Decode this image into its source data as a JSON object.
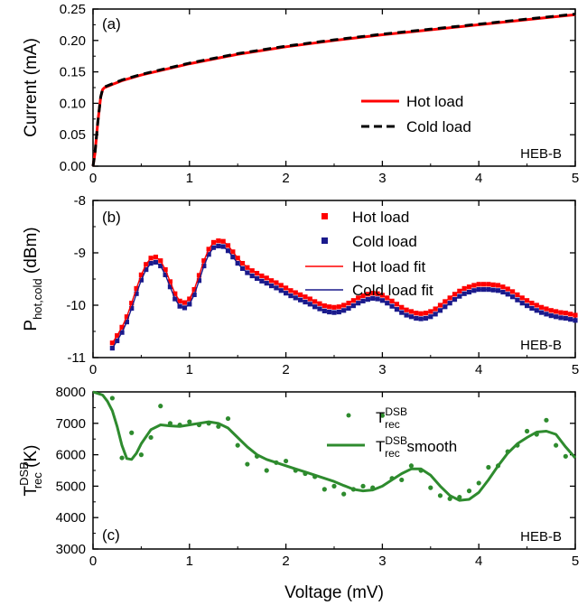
{
  "chart_data": [
    {
      "type": "line",
      "panel_label": "(a)",
      "annotation": "HEB-B",
      "ylabel": "Current (mA)",
      "xlim": [
        0,
        5
      ],
      "ylim": [
        0,
        0.25
      ],
      "x_ticks": [
        "0",
        "1",
        "2",
        "3",
        "4",
        "5"
      ],
      "y_ticks": [
        "0.00",
        "0.05",
        "0.10",
        "0.15",
        "0.20",
        "0.25"
      ],
      "legend_position": "right",
      "series": [
        {
          "name": "Hot load",
          "color": "#ff0000",
          "style": "solid",
          "x": [
            0,
            0.02,
            0.05,
            0.08,
            0.1,
            0.12,
            0.2,
            0.3,
            0.5,
            0.75,
            1.0,
            1.5,
            2.0,
            2.5,
            3.0,
            3.5,
            4.0,
            4.5,
            5.0
          ],
          "y": [
            0,
            0.02,
            0.07,
            0.11,
            0.122,
            0.125,
            0.13,
            0.136,
            0.145,
            0.154,
            0.163,
            0.178,
            0.19,
            0.2,
            0.209,
            0.217,
            0.225,
            0.233,
            0.241
          ]
        },
        {
          "name": "Cold load",
          "color": "#000000",
          "style": "dashed",
          "x": [
            0,
            0.02,
            0.05,
            0.08,
            0.1,
            0.12,
            0.2,
            0.3,
            0.5,
            0.75,
            1.0,
            1.5,
            2.0,
            2.5,
            3.0,
            3.5,
            4.0,
            4.5,
            5.0
          ],
          "y": [
            0,
            0.02,
            0.07,
            0.11,
            0.123,
            0.126,
            0.131,
            0.137,
            0.146,
            0.155,
            0.164,
            0.179,
            0.191,
            0.201,
            0.21,
            0.218,
            0.226,
            0.234,
            0.242
          ]
        }
      ]
    },
    {
      "type": "line",
      "panel_label": "(b)",
      "annotation": "HEB-B",
      "ylabel_main": "P",
      "ylabel_sub": "hot,cold",
      "ylabel_unit": " (dBm)",
      "xlim": [
        0,
        5
      ],
      "ylim": [
        -11,
        -8
      ],
      "x_ticks": [
        "0",
        "1",
        "2",
        "3",
        "4",
        "5"
      ],
      "y_ticks": [
        "-11",
        "-10",
        "-9",
        "-8"
      ],
      "legend_position": "top-right",
      "series": [
        {
          "name": "Hot load",
          "color": "#ff0000",
          "style": "markers",
          "x": [
            0.2,
            0.25,
            0.3,
            0.35,
            0.4,
            0.45,
            0.5,
            0.55,
            0.6,
            0.65,
            0.7,
            0.75,
            0.8,
            0.85,
            0.9,
            0.95,
            1.0,
            1.05,
            1.1,
            1.15,
            1.2,
            1.25,
            1.3,
            1.35,
            1.4,
            1.45,
            1.5,
            1.55,
            1.6,
            1.65,
            1.7,
            1.75,
            1.8,
            1.85,
            1.9,
            1.95,
            2.0,
            2.05,
            2.1,
            2.15,
            2.2,
            2.25,
            2.3,
            2.35,
            2.4,
            2.45,
            2.5,
            2.55,
            2.6,
            2.65,
            2.7,
            2.75,
            2.8,
            2.85,
            2.9,
            2.95,
            3.0,
            3.05,
            3.1,
            3.15,
            3.2,
            3.25,
            3.3,
            3.35,
            3.4,
            3.45,
            3.5,
            3.55,
            3.6,
            3.65,
            3.7,
            3.75,
            3.8,
            3.85,
            3.9,
            3.95,
            4.0,
            4.05,
            4.1,
            4.15,
            4.2,
            4.25,
            4.3,
            4.35,
            4.4,
            4.45,
            4.5,
            4.55,
            4.6,
            4.65,
            4.7,
            4.75,
            4.8,
            4.85,
            4.9,
            4.95,
            5.0
          ],
          "y": [
            -10.72,
            -10.58,
            -10.42,
            -10.22,
            -9.96,
            -9.68,
            -9.42,
            -9.22,
            -9.1,
            -9.08,
            -9.15,
            -9.32,
            -9.55,
            -9.78,
            -9.92,
            -9.95,
            -9.88,
            -9.7,
            -9.43,
            -9.15,
            -8.93,
            -8.8,
            -8.77,
            -8.78,
            -8.86,
            -8.98,
            -9.1,
            -9.2,
            -9.28,
            -9.34,
            -9.39,
            -9.44,
            -9.48,
            -9.53,
            -9.57,
            -9.62,
            -9.67,
            -9.72,
            -9.76,
            -9.8,
            -9.84,
            -9.88,
            -9.93,
            -9.97,
            -10.01,
            -10.03,
            -10.04,
            -10.03,
            -10.0,
            -9.96,
            -9.91,
            -9.86,
            -9.82,
            -9.79,
            -9.77,
            -9.78,
            -9.81,
            -9.86,
            -9.92,
            -9.98,
            -10.04,
            -10.09,
            -10.12,
            -10.15,
            -10.16,
            -10.15,
            -10.12,
            -10.07,
            -10.0,
            -9.93,
            -9.86,
            -9.79,
            -9.73,
            -9.68,
            -9.65,
            -9.62,
            -9.6,
            -9.6,
            -9.6,
            -9.61,
            -9.62,
            -9.65,
            -9.69,
            -9.74,
            -9.8,
            -9.86,
            -9.91,
            -9.96,
            -10.0,
            -10.04,
            -10.07,
            -10.1,
            -10.12,
            -10.14,
            -10.15,
            -10.17,
            -10.19
          ]
        },
        {
          "name": "Cold load",
          "color": "#1a1a8c",
          "style": "markers",
          "x": [
            0.2,
            0.25,
            0.3,
            0.35,
            0.4,
            0.45,
            0.5,
            0.55,
            0.6,
            0.65,
            0.7,
            0.75,
            0.8,
            0.85,
            0.9,
            0.95,
            1.0,
            1.05,
            1.1,
            1.15,
            1.2,
            1.25,
            1.3,
            1.35,
            1.4,
            1.45,
            1.5,
            1.55,
            1.6,
            1.65,
            1.7,
            1.75,
            1.8,
            1.85,
            1.9,
            1.95,
            2.0,
            2.05,
            2.1,
            2.15,
            2.2,
            2.25,
            2.3,
            2.35,
            2.4,
            2.45,
            2.5,
            2.55,
            2.6,
            2.65,
            2.7,
            2.75,
            2.8,
            2.85,
            2.9,
            2.95,
            3.0,
            3.05,
            3.1,
            3.15,
            3.2,
            3.25,
            3.3,
            3.35,
            3.4,
            3.45,
            3.5,
            3.55,
            3.6,
            3.65,
            3.7,
            3.75,
            3.8,
            3.85,
            3.9,
            3.95,
            4.0,
            4.05,
            4.1,
            4.15,
            4.2,
            4.25,
            4.3,
            4.35,
            4.4,
            4.45,
            4.5,
            4.55,
            4.6,
            4.65,
            4.7,
            4.75,
            4.8,
            4.85,
            4.9,
            4.95,
            5.0
          ],
          "y": [
            -10.82,
            -10.68,
            -10.52,
            -10.32,
            -10.06,
            -9.78,
            -9.52,
            -9.32,
            -9.2,
            -9.18,
            -9.25,
            -9.42,
            -9.65,
            -9.88,
            -10.02,
            -10.05,
            -9.98,
            -9.8,
            -9.53,
            -9.25,
            -9.03,
            -8.9,
            -8.87,
            -8.88,
            -8.96,
            -9.08,
            -9.2,
            -9.3,
            -9.38,
            -9.44,
            -9.49,
            -9.54,
            -9.58,
            -9.63,
            -9.67,
            -9.72,
            -9.77,
            -9.82,
            -9.86,
            -9.9,
            -9.94,
            -9.98,
            -10.03,
            -10.07,
            -10.11,
            -10.13,
            -10.14,
            -10.13,
            -10.1,
            -10.06,
            -10.01,
            -9.96,
            -9.92,
            -9.89,
            -9.87,
            -9.88,
            -9.91,
            -9.96,
            -10.02,
            -10.08,
            -10.14,
            -10.19,
            -10.22,
            -10.25,
            -10.26,
            -10.25,
            -10.22,
            -10.17,
            -10.1,
            -10.03,
            -9.96,
            -9.89,
            -9.83,
            -9.78,
            -9.75,
            -9.72,
            -9.7,
            -9.7,
            -9.7,
            -9.71,
            -9.72,
            -9.75,
            -9.79,
            -9.84,
            -9.9,
            -9.96,
            -10.01,
            -10.06,
            -10.1,
            -10.14,
            -10.17,
            -10.2,
            -10.22,
            -10.24,
            -10.25,
            -10.27,
            -10.29
          ]
        },
        {
          "name": "Hot load fit",
          "color": "#ff0000",
          "style": "solid",
          "fit_of": 0
        },
        {
          "name": "Cold load fit",
          "color": "#1a1a8c",
          "style": "solid",
          "fit_of": 1
        }
      ]
    },
    {
      "type": "scatter",
      "panel_label": "(c)",
      "annotation": "HEB-B",
      "xlabel": "Voltage (mV)",
      "ylabel_main": "T",
      "ylabel_sup": "DSB",
      "ylabel_sub": "rec",
      "ylabel_unit": " (K)",
      "xlim": [
        0,
        5
      ],
      "ylim": [
        3000,
        8000
      ],
      "x_ticks": [
        "0",
        "1",
        "2",
        "3",
        "4",
        "5"
      ],
      "y_ticks": [
        "3000",
        "4000",
        "5000",
        "6000",
        "7000",
        "8000"
      ],
      "legend_position": "top-right",
      "series": [
        {
          "name": "T_rec^DSB",
          "label_main": "T",
          "label_sup": "DSB",
          "label_sub": "rec",
          "label_suffix": "",
          "color": "#2e8b2e",
          "style": "markers",
          "x": [
            0.2,
            0.3,
            0.4,
            0.5,
            0.6,
            0.7,
            0.8,
            0.9,
            1.0,
            1.1,
            1.2,
            1.3,
            1.4,
            1.5,
            1.6,
            1.7,
            1.8,
            1.9,
            2.0,
            2.1,
            2.2,
            2.3,
            2.4,
            2.5,
            2.6,
            2.7,
            2.8,
            2.9,
            3.0,
            3.1,
            3.2,
            3.3,
            3.4,
            3.5,
            3.6,
            3.7,
            3.8,
            3.9,
            4.0,
            4.1,
            4.2,
            4.3,
            4.4,
            4.5,
            4.6,
            4.7,
            4.8,
            4.9
          ],
          "y": [
            7800,
            5900,
            6700,
            6000,
            6550,
            7550,
            7000,
            6950,
            7050,
            6950,
            7000,
            6900,
            7150,
            6300,
            5700,
            5950,
            5500,
            5750,
            5800,
            5500,
            5400,
            5300,
            4900,
            5000,
            4750,
            4900,
            5000,
            4950,
            7250,
            5250,
            5200,
            5650,
            5500,
            4950,
            4700,
            4600,
            4650,
            4850,
            5100,
            5600,
            5650,
            6100,
            6300,
            6750,
            6650,
            7100,
            6300,
            5950
          ]
        },
        {
          "name": "T_rec^DSB smooth",
          "label_main": "T",
          "label_sup": "DSB",
          "label_sub": "rec",
          "label_suffix": " smooth",
          "color": "#2e8b2e",
          "style": "solid",
          "x": [
            0,
            0.05,
            0.1,
            0.15,
            0.2,
            0.25,
            0.3,
            0.35,
            0.4,
            0.45,
            0.5,
            0.6,
            0.7,
            0.8,
            0.9,
            1.0,
            1.1,
            1.2,
            1.3,
            1.4,
            1.5,
            1.6,
            1.7,
            1.8,
            1.9,
            2.0,
            2.1,
            2.2,
            2.3,
            2.4,
            2.5,
            2.6,
            2.7,
            2.8,
            2.9,
            3.0,
            3.1,
            3.2,
            3.3,
            3.4,
            3.5,
            3.6,
            3.7,
            3.8,
            3.9,
            4.0,
            4.1,
            4.2,
            4.3,
            4.4,
            4.5,
            4.6,
            4.7,
            4.8,
            4.9,
            5.0
          ],
          "y": [
            8000,
            7950,
            7900,
            7700,
            7400,
            6900,
            6300,
            5880,
            5850,
            6050,
            6350,
            6800,
            6950,
            6920,
            6900,
            6950,
            7000,
            7050,
            7000,
            6850,
            6550,
            6250,
            6000,
            5850,
            5750,
            5650,
            5550,
            5450,
            5350,
            5250,
            5150,
            5020,
            4900,
            4850,
            4880,
            5000,
            5200,
            5400,
            5550,
            5550,
            5350,
            5000,
            4700,
            4550,
            4580,
            4800,
            5200,
            5650,
            6050,
            6350,
            6550,
            6720,
            6750,
            6650,
            6250,
            5900
          ]
        }
      ]
    }
  ]
}
